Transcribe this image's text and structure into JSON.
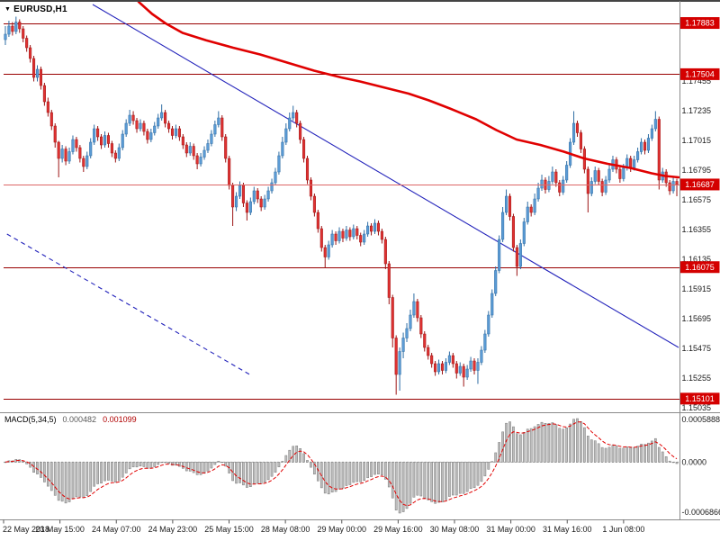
{
  "icons": {
    "dropdown": "▼"
  },
  "colors": {
    "bull_fill": "#5b9bd5",
    "bull_stroke": "#2e6da4",
    "bear_fill": "#e03232",
    "bear_stroke": "#9c1515",
    "ma": "#e00000",
    "level_line": "#990000",
    "badge": "#d40000",
    "bid_line": "#dd6666",
    "trend": "#2323bb",
    "hist_fill": "#bdbdbd",
    "hist_stroke": "#787878",
    "signal": "#e00000",
    "frame": "#8a8a8a"
  },
  "chart_data": {
    "type": "candlestick_with_macd",
    "symbol_label": "EURUSD,H1",
    "symbol": "EURUSD",
    "timeframe": "H1",
    "price_axis": {
      "min": 1.1502,
      "max": 1.1802,
      "tick_labels": [
        "1.17455",
        "1.17235",
        "1.17015",
        "1.16795",
        "1.16575",
        "1.16355",
        "1.16135",
        "1.15915",
        "1.15695",
        "1.15475",
        "1.15255",
        "1.15035"
      ]
    },
    "levels": [
      {
        "value": 1.17883,
        "label": "1.17883"
      },
      {
        "value": 1.17504,
        "label": "1.17504"
      },
      {
        "value": 1.16075,
        "label": "1.16075"
      },
      {
        "value": 1.15101,
        "label": "1.15101"
      }
    ],
    "bid": {
      "value": 1.16687,
      "label": "1.16687"
    },
    "time_axis": {
      "labels": [
        "22 May 2018",
        "23 May 15:00",
        "24 May 07:00",
        "24 May 23:00",
        "25 May 15:00",
        "28 May 08:00",
        "29 May 00:00",
        "29 May 16:00",
        "30 May 08:00",
        "31 May 00:00",
        "31 May 16:00",
        "1 Jun 08:00"
      ],
      "step_fraction": 0.0835
    },
    "candles": [
      [
        1.1776,
        1.1786,
        1.1772,
        1.178
      ],
      [
        1.178,
        1.179,
        1.1778,
        1.1786
      ],
      [
        1.1786,
        1.1789,
        1.1779,
        1.1782
      ],
      [
        1.1782,
        1.1793,
        1.178,
        1.1789
      ],
      [
        1.1789,
        1.1791,
        1.1781,
        1.1784
      ],
      [
        1.1784,
        1.1786,
        1.1774,
        1.1777
      ],
      [
        1.1777,
        1.1779,
        1.1767,
        1.177
      ],
      [
        1.177,
        1.1772,
        1.1759,
        1.1762
      ],
      [
        1.1762,
        1.1764,
        1.1745,
        1.1748
      ],
      [
        1.1748,
        1.1757,
        1.1745,
        1.1754
      ],
      [
        1.1754,
        1.1756,
        1.1739,
        1.1742
      ],
      [
        1.1742,
        1.1744,
        1.1727,
        1.173
      ],
      [
        1.173,
        1.1733,
        1.1719,
        1.1722
      ],
      [
        1.1722,
        1.1724,
        1.1709,
        1.1712
      ],
      [
        1.1712,
        1.1714,
        1.1696,
        1.17
      ],
      [
        1.17,
        1.1701,
        1.1674,
        1.1688
      ],
      [
        1.1688,
        1.1698,
        1.1685,
        1.1695
      ],
      [
        1.1695,
        1.1697,
        1.1683,
        1.1686
      ],
      [
        1.1686,
        1.1696,
        1.1684,
        1.1693
      ],
      [
        1.1693,
        1.1705,
        1.1691,
        1.1702
      ],
      [
        1.1702,
        1.1704,
        1.1693,
        1.1696
      ],
      [
        1.1696,
        1.1698,
        1.1685,
        1.1688
      ],
      [
        1.1688,
        1.169,
        1.1678,
        1.1682
      ],
      [
        1.1682,
        1.1693,
        1.168,
        1.169
      ],
      [
        1.169,
        1.1703,
        1.1688,
        1.17
      ],
      [
        1.17,
        1.1713,
        1.1698,
        1.171
      ],
      [
        1.171,
        1.1712,
        1.1701,
        1.1704
      ],
      [
        1.1704,
        1.1706,
        1.1695,
        1.1698
      ],
      [
        1.1698,
        1.1708,
        1.1696,
        1.1705
      ],
      [
        1.1705,
        1.1707,
        1.1696,
        1.1699
      ],
      [
        1.1699,
        1.1701,
        1.1689,
        1.1692
      ],
      [
        1.1692,
        1.1694,
        1.1685,
        1.1688
      ],
      [
        1.1688,
        1.1699,
        1.1686,
        1.1696
      ],
      [
        1.1696,
        1.1709,
        1.1694,
        1.1706
      ],
      [
        1.1706,
        1.1717,
        1.1704,
        1.1714
      ],
      [
        1.1714,
        1.1724,
        1.1712,
        1.172
      ],
      [
        1.172,
        1.1723,
        1.1713,
        1.1716
      ],
      [
        1.1716,
        1.1718,
        1.1707,
        1.171
      ],
      [
        1.171,
        1.1717,
        1.1708,
        1.1714
      ],
      [
        1.1714,
        1.1716,
        1.1705,
        1.1708
      ],
      [
        1.1708,
        1.171,
        1.1699,
        1.1702
      ],
      [
        1.1702,
        1.171,
        1.17,
        1.1707
      ],
      [
        1.1707,
        1.1715,
        1.1705,
        1.1712
      ],
      [
        1.1712,
        1.1721,
        1.171,
        1.1718
      ],
      [
        1.1718,
        1.1728,
        1.1716,
        1.1722
      ],
      [
        1.1722,
        1.1724,
        1.1711,
        1.1714
      ],
      [
        1.1714,
        1.1716,
        1.1707,
        1.171
      ],
      [
        1.171,
        1.1712,
        1.1702,
        1.1705
      ],
      [
        1.1705,
        1.1713,
        1.1703,
        1.171
      ],
      [
        1.171,
        1.1712,
        1.1701,
        1.1704
      ],
      [
        1.1704,
        1.1706,
        1.1695,
        1.1698
      ],
      [
        1.1698,
        1.17,
        1.1689,
        1.1692
      ],
      [
        1.1692,
        1.17,
        1.169,
        1.1697
      ],
      [
        1.1697,
        1.1699,
        1.1687,
        1.169
      ],
      [
        1.169,
        1.1692,
        1.168,
        1.1684
      ],
      [
        1.1684,
        1.1692,
        1.1682,
        1.1689
      ],
      [
        1.1689,
        1.1697,
        1.1687,
        1.1694
      ],
      [
        1.1694,
        1.1702,
        1.1692,
        1.1699
      ],
      [
        1.1699,
        1.1709,
        1.1697,
        1.1706
      ],
      [
        1.1706,
        1.1716,
        1.1704,
        1.1713
      ],
      [
        1.1713,
        1.1723,
        1.1711,
        1.1718
      ],
      [
        1.1718,
        1.172,
        1.1701,
        1.1704
      ],
      [
        1.1704,
        1.1706,
        1.1685,
        1.1688
      ],
      [
        1.1688,
        1.169,
        1.1665,
        1.1668
      ],
      [
        1.1668,
        1.167,
        1.1638,
        1.1652
      ],
      [
        1.1652,
        1.1663,
        1.1649,
        1.166
      ],
      [
        1.166,
        1.1671,
        1.1658,
        1.1668
      ],
      [
        1.1668,
        1.167,
        1.1652,
        1.1655
      ],
      [
        1.1655,
        1.1657,
        1.1642,
        1.1648
      ],
      [
        1.1648,
        1.1659,
        1.1646,
        1.1656
      ],
      [
        1.1656,
        1.1667,
        1.1654,
        1.1664
      ],
      [
        1.1664,
        1.1666,
        1.1655,
        1.1658
      ],
      [
        1.1658,
        1.166,
        1.1649,
        1.1652
      ],
      [
        1.1652,
        1.1661,
        1.165,
        1.1658
      ],
      [
        1.1658,
        1.1667,
        1.1656,
        1.1664
      ],
      [
        1.1664,
        1.1673,
        1.1662,
        1.167
      ],
      [
        1.167,
        1.1681,
        1.1668,
        1.1678
      ],
      [
        1.1678,
        1.1693,
        1.1676,
        1.169
      ],
      [
        1.169,
        1.1704,
        1.1688,
        1.17
      ],
      [
        1.17,
        1.1714,
        1.1698,
        1.171
      ],
      [
        1.171,
        1.1722,
        1.1708,
        1.1718
      ],
      [
        1.1718,
        1.1727,
        1.1716,
        1.1722
      ],
      [
        1.1722,
        1.1724,
        1.1711,
        1.1714
      ],
      [
        1.1714,
        1.1716,
        1.1699,
        1.1702
      ],
      [
        1.1702,
        1.1704,
        1.1685,
        1.1688
      ],
      [
        1.1688,
        1.169,
        1.1669,
        1.1672
      ],
      [
        1.1672,
        1.1674,
        1.1657,
        1.166
      ],
      [
        1.166,
        1.1662,
        1.1645,
        1.1648
      ],
      [
        1.1648,
        1.165,
        1.1633,
        1.1636
      ],
      [
        1.1636,
        1.1638,
        1.1619,
        1.1622
      ],
      [
        1.1622,
        1.1624,
        1.1607,
        1.1615
      ],
      [
        1.1615,
        1.1627,
        1.1613,
        1.1624
      ],
      [
        1.1624,
        1.1635,
        1.1622,
        1.1632
      ],
      [
        1.1632,
        1.1634,
        1.1624,
        1.1627
      ],
      [
        1.1627,
        1.1637,
        1.1625,
        1.1634
      ],
      [
        1.1634,
        1.1636,
        1.1626,
        1.1629
      ],
      [
        1.1629,
        1.1638,
        1.1627,
        1.1635
      ],
      [
        1.1635,
        1.1637,
        1.1627,
        1.163
      ],
      [
        1.163,
        1.1639,
        1.1628,
        1.1636
      ],
      [
        1.1636,
        1.1638,
        1.1628,
        1.1631
      ],
      [
        1.1631,
        1.1633,
        1.1623,
        1.1626
      ],
      [
        1.1626,
        1.1635,
        1.1624,
        1.1632
      ],
      [
        1.1632,
        1.1641,
        1.163,
        1.1638
      ],
      [
        1.1638,
        1.164,
        1.1631,
        1.1634
      ],
      [
        1.1634,
        1.1643,
        1.1632,
        1.164
      ],
      [
        1.164,
        1.1642,
        1.1631,
        1.1634
      ],
      [
        1.1634,
        1.1636,
        1.1625,
        1.1628
      ],
      [
        1.1628,
        1.163,
        1.1606,
        1.161
      ],
      [
        1.161,
        1.1612,
        1.158,
        1.1585
      ],
      [
        1.1585,
        1.1587,
        1.1548,
        1.1555
      ],
      [
        1.1555,
        1.1557,
        1.1513,
        1.1528
      ],
      [
        1.1528,
        1.1548,
        1.1516,
        1.1545
      ],
      [
        1.1545,
        1.1559,
        1.154,
        1.1555
      ],
      [
        1.1555,
        1.1566,
        1.1552,
        1.1562
      ],
      [
        1.1562,
        1.1576,
        1.156,
        1.1572
      ],
      [
        1.1572,
        1.1588,
        1.157,
        1.1582
      ],
      [
        1.1582,
        1.1584,
        1.1567,
        1.157
      ],
      [
        1.157,
        1.1572,
        1.1555,
        1.1558
      ],
      [
        1.1558,
        1.156,
        1.1545,
        1.1548
      ],
      [
        1.1548,
        1.155,
        1.1539,
        1.1542
      ],
      [
        1.1542,
        1.1544,
        1.1533,
        1.1536
      ],
      [
        1.1536,
        1.1538,
        1.1527,
        1.153
      ],
      [
        1.153,
        1.1539,
        1.1528,
        1.1536
      ],
      [
        1.1536,
        1.1538,
        1.1528,
        1.1531
      ],
      [
        1.1531,
        1.154,
        1.1529,
        1.1537
      ],
      [
        1.1537,
        1.1545,
        1.1535,
        1.1542
      ],
      [
        1.1542,
        1.1544,
        1.1533,
        1.1536
      ],
      [
        1.1536,
        1.1538,
        1.1525,
        1.1529
      ],
      [
        1.1529,
        1.1537,
        1.1527,
        1.1534
      ],
      [
        1.1534,
        1.1536,
        1.1519,
        1.1526
      ],
      [
        1.1526,
        1.1535,
        1.1524,
        1.1532
      ],
      [
        1.1532,
        1.1541,
        1.153,
        1.1538
      ],
      [
        1.1538,
        1.154,
        1.1528,
        1.1531
      ],
      [
        1.1531,
        1.154,
        1.1521,
        1.1537
      ],
      [
        1.1537,
        1.1549,
        1.1535,
        1.1546
      ],
      [
        1.1546,
        1.1561,
        1.1544,
        1.1558
      ],
      [
        1.1558,
        1.1575,
        1.1556,
        1.1572
      ],
      [
        1.1572,
        1.1591,
        1.157,
        1.1588
      ],
      [
        1.1588,
        1.1608,
        1.1586,
        1.1605
      ],
      [
        1.1605,
        1.1631,
        1.1603,
        1.1628
      ],
      [
        1.1628,
        1.1652,
        1.1626,
        1.1648
      ],
      [
        1.1648,
        1.1665,
        1.1646,
        1.166
      ],
      [
        1.166,
        1.1662,
        1.1642,
        1.1645
      ],
      [
        1.1645,
        1.1647,
        1.1619,
        1.1622
      ],
      [
        1.1622,
        1.1624,
        1.1601,
        1.1608
      ],
      [
        1.1608,
        1.1628,
        1.1606,
        1.1625
      ],
      [
        1.1625,
        1.1644,
        1.1623,
        1.1641
      ],
      [
        1.1641,
        1.1656,
        1.1639,
        1.1652
      ],
      [
        1.1652,
        1.1654,
        1.1645,
        1.1648
      ],
      [
        1.1648,
        1.1662,
        1.1646,
        1.1658
      ],
      [
        1.1658,
        1.167,
        1.1656,
        1.1666
      ],
      [
        1.1666,
        1.1676,
        1.1664,
        1.1672
      ],
      [
        1.1672,
        1.1674,
        1.1662,
        1.1665
      ],
      [
        1.1665,
        1.1675,
        1.1663,
        1.1671
      ],
      [
        1.1671,
        1.1682,
        1.1669,
        1.1678
      ],
      [
        1.1678,
        1.168,
        1.1667,
        1.167
      ],
      [
        1.167,
        1.1672,
        1.166,
        1.1663
      ],
      [
        1.1663,
        1.1675,
        1.1661,
        1.1672
      ],
      [
        1.1672,
        1.1686,
        1.167,
        1.1683
      ],
      [
        1.1683,
        1.1703,
        1.1681,
        1.17
      ],
      [
        1.17,
        1.1723,
        1.1698,
        1.1714
      ],
      [
        1.1714,
        1.1716,
        1.1704,
        1.1707
      ],
      [
        1.1707,
        1.1709,
        1.1692,
        1.1695
      ],
      [
        1.1695,
        1.1697,
        1.1677,
        1.168
      ],
      [
        1.168,
        1.1682,
        1.1648,
        1.1662
      ],
      [
        1.1662,
        1.1674,
        1.166,
        1.1671
      ],
      [
        1.1671,
        1.1682,
        1.1669,
        1.1679
      ],
      [
        1.1679,
        1.1681,
        1.1668,
        1.1671
      ],
      [
        1.1671,
        1.1673,
        1.166,
        1.1663
      ],
      [
        1.1663,
        1.1675,
        1.1661,
        1.1672
      ],
      [
        1.1672,
        1.1683,
        1.167,
        1.168
      ],
      [
        1.168,
        1.169,
        1.1678,
        1.1687
      ],
      [
        1.1687,
        1.1689,
        1.1677,
        1.168
      ],
      [
        1.168,
        1.1682,
        1.167,
        1.1673
      ],
      [
        1.1673,
        1.1684,
        1.1671,
        1.1681
      ],
      [
        1.1681,
        1.1691,
        1.1679,
        1.1688
      ],
      [
        1.1688,
        1.169,
        1.1678,
        1.1681
      ],
      [
        1.1681,
        1.169,
        1.1679,
        1.1687
      ],
      [
        1.1687,
        1.1696,
        1.1685,
        1.1693
      ],
      [
        1.1693,
        1.1703,
        1.1691,
        1.17
      ],
      [
        1.17,
        1.1702,
        1.1691,
        1.1694
      ],
      [
        1.1694,
        1.1706,
        1.1692,
        1.1703
      ],
      [
        1.1703,
        1.1713,
        1.1701,
        1.171
      ],
      [
        1.171,
        1.1723,
        1.1708,
        1.1717
      ],
      [
        1.1717,
        1.1719,
        1.1665,
        1.1672
      ],
      [
        1.1672,
        1.1681,
        1.167,
        1.1678
      ],
      [
        1.1678,
        1.168,
        1.1667,
        1.167
      ],
      [
        1.167,
        1.1672,
        1.1661,
        1.1664
      ],
      [
        1.1664,
        1.1674,
        1.1662,
        1.1671
      ],
      [
        1.1671,
        1.1673,
        1.166,
        1.16687
      ]
    ],
    "ma": {
      "points": [
        [
          0.2,
          1.1804
        ],
        [
          0.22,
          1.1795
        ],
        [
          0.24,
          1.1788
        ],
        [
          0.265,
          1.1781
        ],
        [
          0.3,
          1.17755
        ],
        [
          0.34,
          1.177
        ],
        [
          0.38,
          1.1765
        ],
        [
          0.42,
          1.1759
        ],
        [
          0.46,
          1.1753
        ],
        [
          0.5,
          1.1748
        ],
        [
          0.528,
          1.1745
        ],
        [
          0.56,
          1.1741
        ],
        [
          0.6,
          1.1736
        ],
        [
          0.63,
          1.1731
        ],
        [
          0.661,
          1.1725
        ],
        [
          0.7,
          1.1717
        ],
        [
          0.73,
          1.1709
        ],
        [
          0.76,
          1.1702
        ],
        [
          0.795,
          1.1698
        ],
        [
          0.83,
          1.1693
        ],
        [
          0.86,
          1.1688
        ],
        [
          0.895,
          1.1684
        ],
        [
          0.928,
          1.1681
        ],
        [
          0.96,
          1.1677
        ],
        [
          0.98,
          1.1675
        ],
        [
          1.0,
          1.1674
        ]
      ]
    },
    "trendlines": [
      {
        "style": "solid",
        "from": [
          0.132,
          1.1802
        ],
        "to": [
          1.0,
          1.1548
        ]
      },
      {
        "style": "dashed",
        "from": [
          0.005,
          1.1632
        ],
        "to": [
          0.368,
          1.1527
        ]
      }
    ],
    "macd": {
      "name": "MACD(5,34,5)",
      "fast": 5,
      "slow": 34,
      "signal_period": 5,
      "value_main": "0.000482",
      "value_signal": "0.001099",
      "axis_labels": [
        "0.0005888",
        "0.0000",
        "-0.0006866"
      ],
      "axis_values": [
        0.0005888,
        0,
        -0.0006866
      ]
    }
  }
}
